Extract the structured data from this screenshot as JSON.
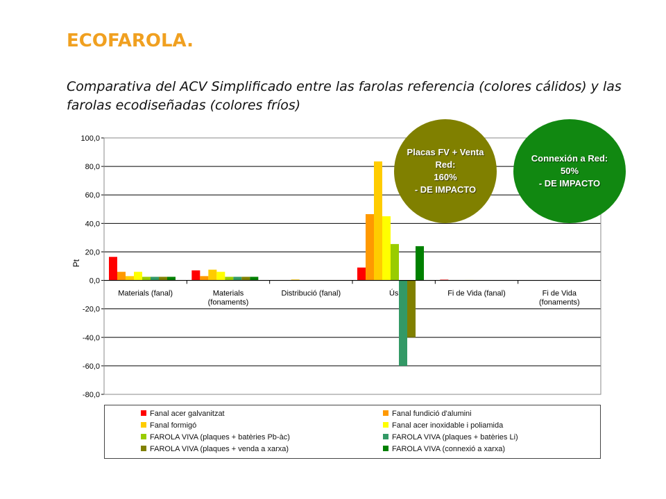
{
  "title": "ECOFAROLA.",
  "subtitle": "Comparativa del ACV Simplificado entre las farolas referencia (colores cálidos) y las farolas ecodiseñadas (colores fríos)",
  "callouts": [
    {
      "lines": [
        "Placas FV + Venta",
        "Red:",
        "160%",
        "- DE IMPACTO"
      ],
      "color": "#808000"
    },
    {
      "lines": [
        "Connexión a Red:",
        "50%",
        "- DE IMPACTO"
      ],
      "color": "#118811"
    }
  ],
  "chart_data": {
    "type": "bar",
    "ylabel": "Pt",
    "ylim": [
      -80,
      100
    ],
    "yticks": [
      100,
      80,
      60,
      40,
      20,
      0,
      -20,
      -40,
      -60,
      -80
    ],
    "ytick_labels": [
      "100,0",
      "80,0",
      "60,0",
      "40,0",
      "20,0",
      "0,0",
      "-20,0",
      "-40,0",
      "-60,0",
      "-80,0"
    ],
    "grid": true,
    "legend_position": "bottom",
    "categories": [
      [
        "Materials (fanal)"
      ],
      [
        "Materials",
        "(fonaments)"
      ],
      [
        "Distribució (fanal)"
      ],
      [
        "Ús"
      ],
      [
        "Fi de Vida (fanal)"
      ],
      [
        "Fi de Vida",
        "(fonaments)"
      ]
    ],
    "series": [
      {
        "name": "Fanal acer galvanitzat",
        "color": "#FF0000",
        "values": [
          16.5,
          7.0,
          0.0,
          9.0,
          0.5,
          0.0
        ]
      },
      {
        "name": "Fanal fundició d'alumini",
        "color": "#FF9900",
        "values": [
          6.0,
          3.0,
          0.2,
          46.5,
          0.2,
          0.0
        ]
      },
      {
        "name": "Fanal formigó",
        "color": "#FFCC00",
        "values": [
          3.0,
          7.5,
          0.6,
          83.5,
          0.2,
          0.0
        ]
      },
      {
        "name": "Fanal acer inoxidable i poliamida",
        "color": "#FFFF00",
        "values": [
          6.0,
          6.0,
          0.2,
          45.0,
          0.3,
          0.0
        ]
      },
      {
        "name": "FAROLA VIVA (plaques + batèries Pb-àc)",
        "color": "#99CC00",
        "values": [
          2.5,
          2.5,
          0.0,
          25.5,
          0.0,
          0.0
        ]
      },
      {
        "name": "FAROLA VIVA (plaques + batèries Li)",
        "color": "#339966",
        "values": [
          2.5,
          2.5,
          0.0,
          -60.0,
          0.0,
          0.0
        ]
      },
      {
        "name": "FAROLA VIVA (plaques + venda a xarxa)",
        "color": "#808000",
        "values": [
          2.5,
          2.5,
          0.0,
          -40.0,
          0.0,
          0.0
        ]
      },
      {
        "name": "FAROLA VIVA (connexió a xarxa)",
        "color": "#008000",
        "values": [
          2.5,
          2.5,
          0.0,
          24.0,
          0.0,
          0.0
        ]
      }
    ]
  }
}
